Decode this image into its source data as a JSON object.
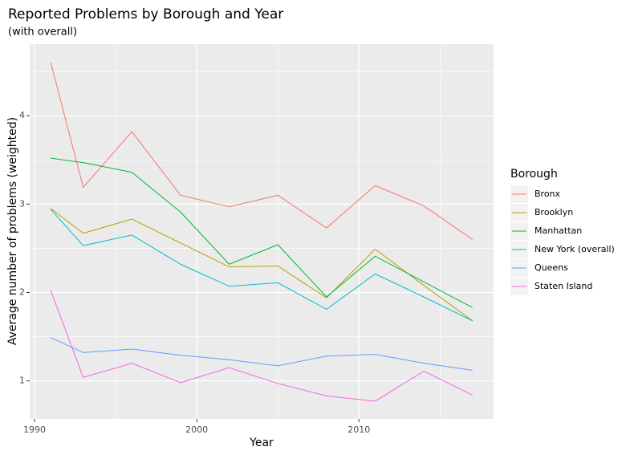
{
  "chart_data": {
    "type": "line",
    "title": "Reported Problems by Borough and Year",
    "subtitle": "(with overall)",
    "x_label": "Year",
    "y_label": "Average number of problems (weighted)",
    "legend_title": "Borough",
    "legend_position": "right",
    "grid": true,
    "x": [
      1991,
      1993,
      1996,
      1999,
      2002,
      2005,
      2008,
      2011,
      2014,
      2017
    ],
    "xlim": [
      1989.7,
      2018.3
    ],
    "xticks": [
      1990,
      2000,
      2010
    ],
    "ylim": [
      0.57,
      4.81
    ],
    "yticks": [
      1,
      2,
      3,
      4
    ],
    "series": [
      {
        "name": "Bronx",
        "color": "#F8766D",
        "values": [
          4.6,
          3.19,
          3.82,
          3.1,
          2.97,
          3.1,
          2.73,
          3.21,
          2.98,
          2.6
        ]
      },
      {
        "name": "Brooklyn",
        "color": "#B79F00",
        "values": [
          2.95,
          2.67,
          2.83,
          2.56,
          2.29,
          2.3,
          1.94,
          2.49,
          2.08,
          1.68
        ]
      },
      {
        "name": "Manhattan",
        "color": "#00BA38",
        "values": [
          3.52,
          3.47,
          3.36,
          2.91,
          2.32,
          2.54,
          1.95,
          2.41,
          2.12,
          1.83
        ]
      },
      {
        "name": "New York (overall)",
        "color": "#00BFC4",
        "values": [
          2.94,
          2.53,
          2.65,
          2.32,
          2.07,
          2.11,
          1.81,
          2.21,
          1.95,
          1.68
        ]
      },
      {
        "name": "Queens",
        "color": "#619CFF",
        "values": [
          1.49,
          1.32,
          1.36,
          1.29,
          1.24,
          1.17,
          1.28,
          1.3,
          1.2,
          1.12
        ]
      },
      {
        "name": "Staten Island",
        "color": "#F564E3",
        "values": [
          2.02,
          1.04,
          1.2,
          0.98,
          1.15,
          0.97,
          0.83,
          0.77,
          1.11,
          0.84
        ]
      }
    ]
  }
}
